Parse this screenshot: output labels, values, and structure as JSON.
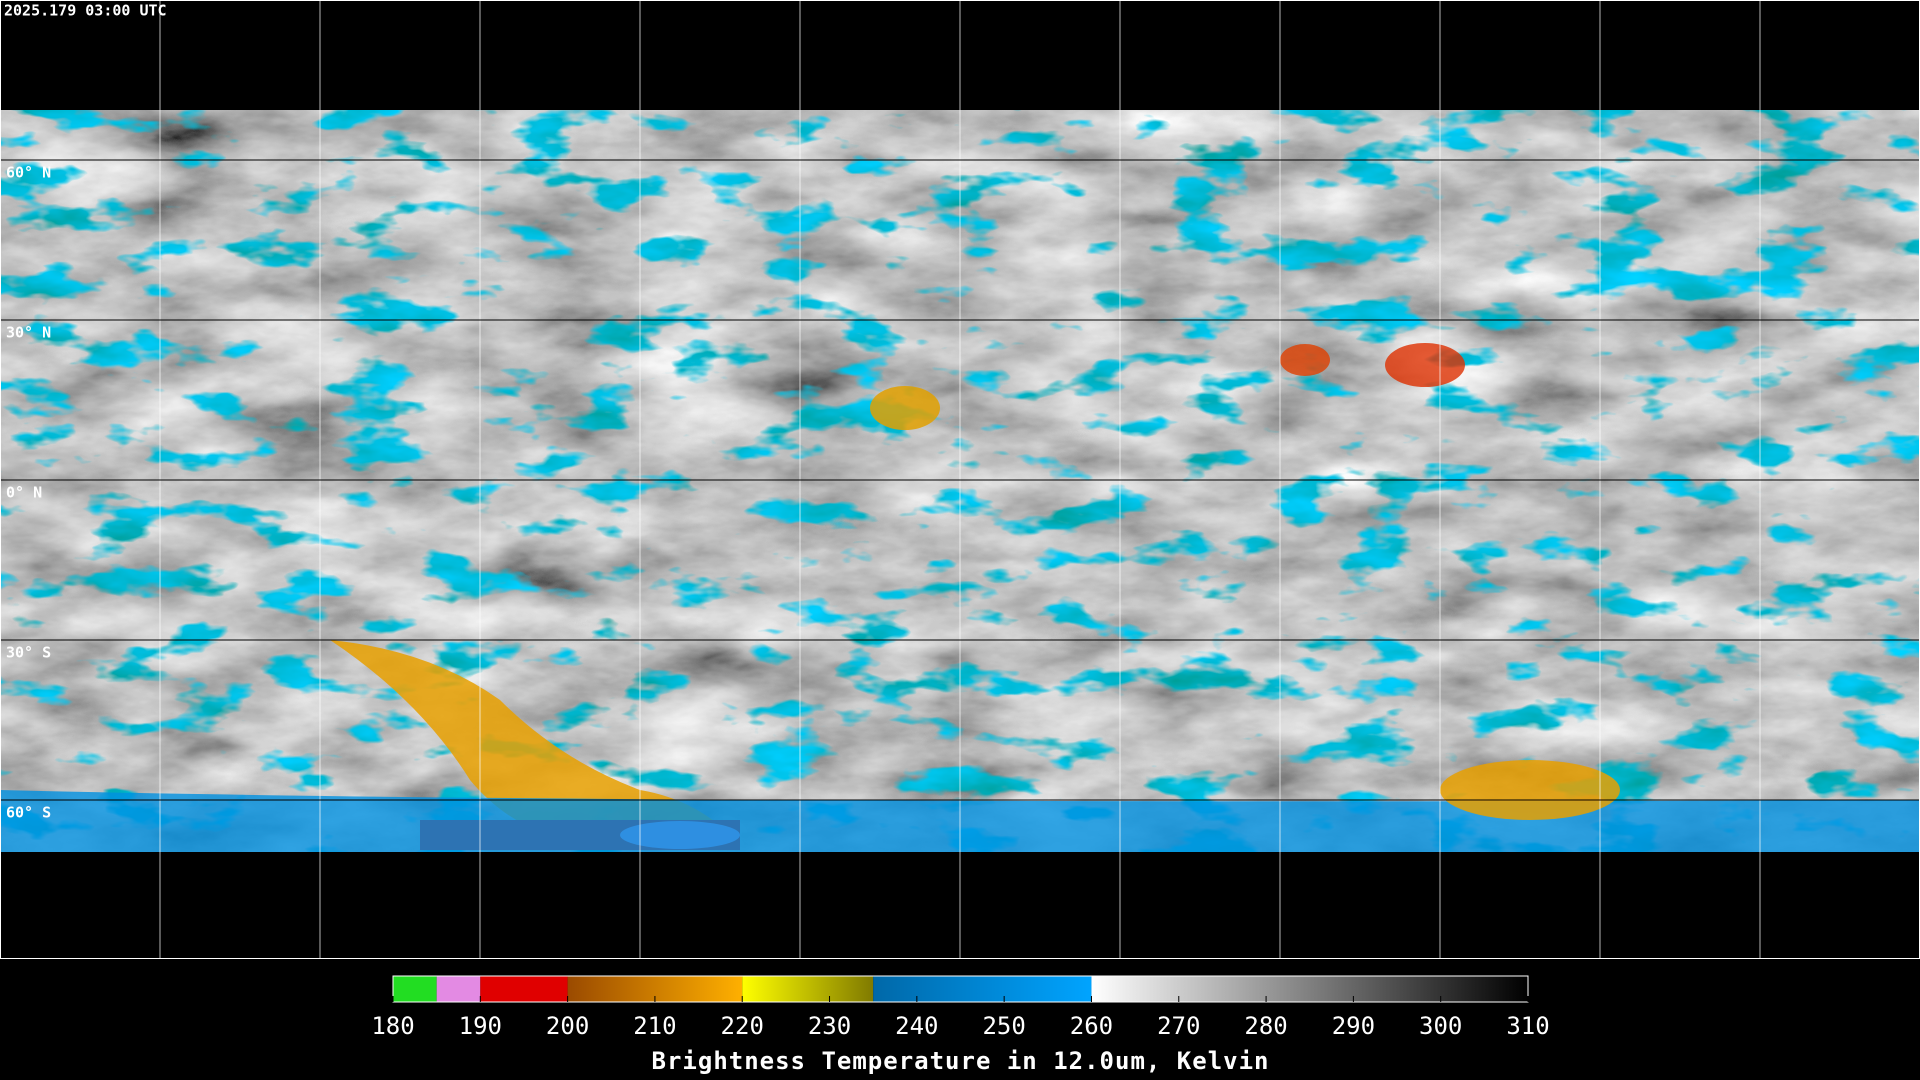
{
  "timestamp": "2025.179 03:00 UTC",
  "latitude_labels": [
    "60° N",
    "30° N",
    "0° N",
    "30° S",
    "60° S"
  ],
  "colorbar": {
    "title": "Brightness Temperature in 12.0um, Kelvin",
    "range": [
      180,
      310
    ],
    "ticks": [
      180,
      190,
      200,
      210,
      220,
      230,
      240,
      250,
      260,
      270,
      280,
      290,
      300,
      310
    ],
    "segments": [
      {
        "from": 180,
        "to": 185,
        "colors": [
          "#22dd22",
          "#22dd22"
        ]
      },
      {
        "from": 185,
        "to": 190,
        "colors": [
          "#e38ae3",
          "#e38ae3"
        ]
      },
      {
        "from": 190,
        "to": 200,
        "colors": [
          "#e00000",
          "#e00000"
        ]
      },
      {
        "from": 200,
        "to": 220,
        "colors": [
          "#9a4a00",
          "#ffb000"
        ]
      },
      {
        "from": 220,
        "to": 235,
        "colors": [
          "#ffff00",
          "#807a00"
        ]
      },
      {
        "from": 235,
        "to": 260,
        "colors": [
          "#0068a8",
          "#00a4ff"
        ]
      },
      {
        "from": 260,
        "to": 310,
        "colors": [
          "#ffffff",
          "#000000"
        ]
      }
    ]
  }
}
